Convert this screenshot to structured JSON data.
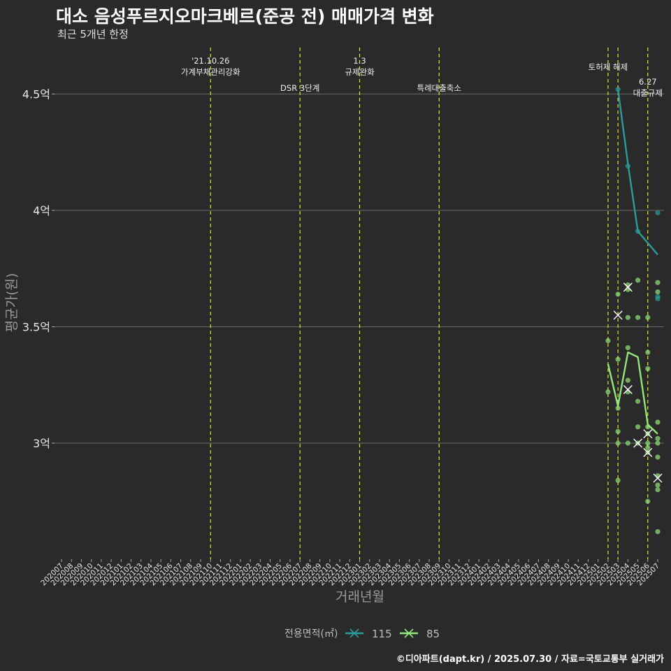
{
  "title": "대소 음성푸르지오마크베르(준공 전) 매매가격 변화",
  "subtitle": "최근 5개년 한정",
  "caption": "©디아파트(dapt.kr) / 2025.07.30 / 자료=국토교통부 실거래가",
  "colors": {
    "background": "#2a2a2a",
    "grid": "#6a6a6a",
    "vline": "#e5e52a",
    "s115": "#2a9d9a",
    "s85": "#93e67a",
    "text": "#e6e6e6"
  },
  "chart_data": {
    "type": "line",
    "title": "대소 음성푸르지오마크베르(준공 전) 매매가격 변화",
    "xlabel": "거래년월",
    "ylabel": "평균가(원)",
    "ylim": [
      2.5,
      4.7
    ],
    "yticks": [
      {
        "v": 3.0,
        "label": "3억"
      },
      {
        "v": 3.5,
        "label": "3.5억"
      },
      {
        "v": 4.0,
        "label": "4억"
      },
      {
        "v": 4.5,
        "label": "4.5억"
      }
    ],
    "categories": [
      "202007",
      "202008",
      "202009",
      "202010",
      "202011",
      "202012",
      "202101",
      "202102",
      "202103",
      "202104",
      "202105",
      "202106",
      "202107",
      "202108",
      "202109",
      "202110",
      "202111",
      "202112",
      "202201",
      "202202",
      "202203",
      "202204",
      "202205",
      "202206",
      "202207",
      "202208",
      "202209",
      "202210",
      "202211",
      "202212",
      "202301",
      "202302",
      "202303",
      "202304",
      "202305",
      "202306",
      "202307",
      "202308",
      "202309",
      "202310",
      "202311",
      "202312",
      "202401",
      "202402",
      "202403",
      "202404",
      "202405",
      "202406",
      "202407",
      "202408",
      "202409",
      "202410",
      "202411",
      "202412",
      "202501",
      "202502",
      "202503",
      "202504",
      "202505",
      "202506",
      "202507"
    ],
    "legend_title": "전용면적(㎡)",
    "legend_position": "bottom",
    "series": [
      {
        "name": "115",
        "color": "#2a9d9a",
        "line": [
          [
            56,
            4.52
          ],
          [
            57,
            4.2
          ],
          [
            58,
            3.91
          ],
          [
            60,
            3.81
          ]
        ],
        "points": [
          [
            56,
            4.52
          ],
          [
            57,
            4.19
          ],
          [
            58,
            3.91
          ],
          [
            60,
            3.99
          ],
          [
            60,
            3.63
          ],
          [
            60,
            3.62
          ]
        ],
        "crosses": []
      },
      {
        "name": "85",
        "color": "#93e67a",
        "line": [
          [
            55,
            3.34
          ],
          [
            56,
            3.16
          ],
          [
            57,
            3.39
          ],
          [
            58,
            3.37
          ],
          [
            59,
            3.08
          ],
          [
            60,
            3.04
          ]
        ],
        "points": [
          [
            55,
            3.44
          ],
          [
            55,
            3.22
          ],
          [
            56,
            3.64
          ],
          [
            56,
            3.36
          ],
          [
            56,
            3.15
          ],
          [
            56,
            3.05
          ],
          [
            56,
            3.0
          ],
          [
            56,
            2.84
          ],
          [
            57,
            3.68
          ],
          [
            57,
            3.66
          ],
          [
            57,
            3.54
          ],
          [
            57,
            3.41
          ],
          [
            57,
            3.27
          ],
          [
            57,
            3.22
          ],
          [
            57,
            3.0
          ],
          [
            58,
            3.7
          ],
          [
            58,
            3.54
          ],
          [
            58,
            3.18
          ],
          [
            58,
            3.07
          ],
          [
            58,
            3.0
          ],
          [
            59,
            3.54
          ],
          [
            59,
            3.39
          ],
          [
            59,
            3.32
          ],
          [
            59,
            3.07
          ],
          [
            59,
            3.04
          ],
          [
            59,
            3.0
          ],
          [
            59,
            2.98
          ],
          [
            59,
            2.96
          ],
          [
            59,
            2.75
          ],
          [
            60,
            3.69
          ],
          [
            60,
            3.65
          ],
          [
            60,
            3.09
          ],
          [
            60,
            3.02
          ],
          [
            60,
            3.0
          ],
          [
            60,
            2.94
          ],
          [
            60,
            2.86
          ],
          [
            60,
            2.82
          ],
          [
            60,
            2.8
          ],
          [
            60,
            2.62
          ]
        ],
        "crosses": [
          [
            56,
            3.55
          ],
          [
            57,
            3.67
          ],
          [
            57,
            3.23
          ],
          [
            58,
            3.0
          ],
          [
            59,
            2.96
          ],
          [
            59,
            3.04
          ],
          [
            60,
            2.85
          ]
        ]
      }
    ],
    "annotations": [
      {
        "idx": 15,
        "lines": [
          "'21.10.26",
          "가계부채관리강화"
        ],
        "level": 0
      },
      {
        "idx": 24,
        "lines": [
          "DSR 3단계"
        ],
        "level": 2
      },
      {
        "idx": 30,
        "lines": [
          "1.3",
          "규제완화"
        ],
        "level": 0
      },
      {
        "idx": 38,
        "lines": [
          "특례대출축소"
        ],
        "level": 2
      },
      {
        "idx": 55,
        "lines": [
          "토허제 해제"
        ],
        "level": 1
      },
      {
        "idx": 56,
        "lines": [],
        "level": 1
      },
      {
        "idx": 59,
        "lines": [
          "6.27",
          "대출규제"
        ],
        "level": 3
      }
    ]
  }
}
